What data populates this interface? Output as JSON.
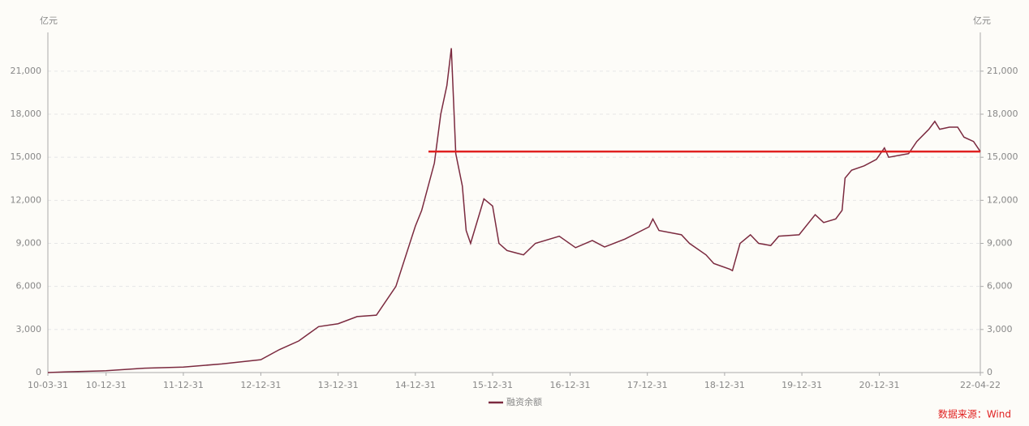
{
  "chart_data": {
    "type": "line",
    "y_unit": "亿元",
    "y2_unit": "亿元",
    "source": "数据来源：Wind",
    "x": [
      "10-03-31",
      "10-06-30",
      "10-12-31",
      "11-06-30",
      "11-12-31",
      "12-06-29",
      "12-12-31",
      "13-03-29",
      "13-06-28",
      "13-09-30",
      "13-12-31",
      "14-03-31",
      "14-06-30",
      "14-09-30",
      "14-12-31",
      "15-01-30",
      "15-03-31",
      "15-04-30",
      "15-05-29",
      "15-06-19",
      "15-07-10",
      "15-08-10",
      "15-08-28",
      "15-09-18",
      "15-11-20",
      "15-12-31",
      "16-01-30",
      "16-03-08",
      "16-05-25",
      "16-07-20",
      "16-11-10",
      "17-01-26",
      "17-04-15",
      "17-06-12",
      "17-09-16",
      "18-01-08",
      "18-01-26",
      "18-02-24",
      "18-06-10",
      "18-07-18",
      "18-10-04",
      "18-11-10",
      "19-01-25",
      "19-02-06",
      "19-03-14",
      "19-05-02",
      "19-06-10",
      "19-08-06",
      "19-09-13",
      "19-12-18",
      "20-03-03",
      "20-04-12",
      "20-06-08",
      "20-07-08",
      "20-07-22",
      "20-08-22",
      "20-10-20",
      "20-12-17",
      "21-01-24",
      "21-02-13",
      "21-04-10",
      "21-05-18",
      "21-06-26",
      "21-08-22",
      "21-09-19",
      "21-10-12",
      "21-11-27",
      "22-01-05",
      "22-02-04",
      "22-03-21",
      "22-04-22"
    ],
    "series": [
      {
        "name": "融资余额",
        "color": "#7b2a3f",
        "values": [
          0,
          50,
          127,
          300,
          382,
          600,
          895,
          1600,
          2200,
          3200,
          3400,
          3900,
          4000,
          6000,
          10200,
          11300,
          14600,
          18000,
          20000,
          22600,
          15250,
          13000,
          9900,
          9000,
          12100,
          11600,
          9000,
          8500,
          8200,
          9000,
          9500,
          8700,
          9200,
          8750,
          9300,
          10150,
          10700,
          9900,
          9600,
          9000,
          8200,
          7600,
          7200,
          7100,
          9000,
          9600,
          9000,
          8850,
          9500,
          9600,
          11000,
          10450,
          10700,
          11300,
          13550,
          14100,
          14400,
          14850,
          15650,
          15000,
          15150,
          15250,
          16100,
          16950,
          17500,
          16950,
          17100,
          17100,
          16400,
          16100,
          15400
        ]
      }
    ],
    "reference_line": {
      "value": 15400,
      "color": "#e02020",
      "x": [
        "15-03-03",
        "22-04-22"
      ]
    },
    "xlim": [
      "10-03-31",
      "22-04-22"
    ],
    "xticks": [
      "10-03-31",
      "10-12-31",
      "11-12-31",
      "12-12-31",
      "13-12-31",
      "14-12-31",
      "15-12-31",
      "16-12-31",
      "17-12-31",
      "18-12-31",
      "19-12-31",
      "20-12-31",
      "22-04-22"
    ],
    "ylim": [
      0,
      23700
    ],
    "yticks": [
      0,
      {
        "value": 3000,
        "label": "3,000"
      },
      {
        "value": 6000,
        "label": "6,000"
      },
      {
        "value": 9000,
        "label": "9,000"
      },
      {
        "value": 12000,
        "label": "12,000"
      },
      {
        "value": 15000,
        "label": "15,000"
      },
      {
        "value": 18000,
        "label": "18,000"
      },
      {
        "value": 21000,
        "label": "21,000"
      }
    ],
    "y2lim": [
      0,
      23700
    ],
    "y2ticks": [
      0,
      {
        "value": 3000,
        "label": "3,000"
      },
      {
        "value": 6000,
        "label": "6,000"
      },
      {
        "value": 9000,
        "label": "9,000"
      },
      {
        "value": 12000,
        "label": "12,000"
      },
      {
        "value": 15000,
        "label": "15,000"
      },
      {
        "value": 18000,
        "label": "18,000"
      },
      {
        "value": 21000,
        "label": "21,000"
      }
    ],
    "grid": true
  }
}
